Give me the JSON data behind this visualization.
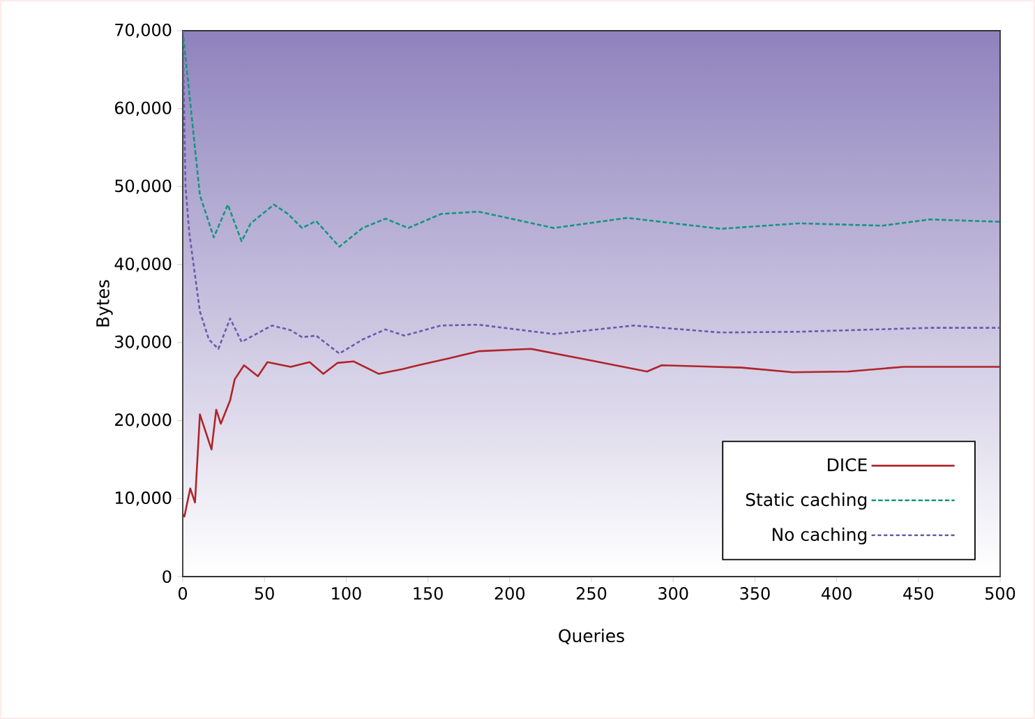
{
  "chart_data": {
    "type": "line",
    "xlabel": "Queries",
    "ylabel": "Bytes",
    "xlim": [
      0,
      500
    ],
    "ylim": [
      0,
      70000
    ],
    "xticks": [
      0,
      50,
      100,
      150,
      200,
      250,
      300,
      350,
      400,
      450,
      500
    ],
    "yticks": [
      0,
      {
        "value": 10000,
        "label": "10,000"
      },
      {
        "value": 20000,
        "label": "20,000"
      },
      {
        "value": 30000,
        "label": "30,000"
      },
      {
        "value": 40000,
        "label": "40,000"
      },
      {
        "value": 50000,
        "label": "50,000"
      },
      {
        "value": 60000,
        "label": "60,000"
      },
      {
        "value": 70000,
        "label": "70,000"
      }
    ],
    "grid": false,
    "legend": "bottom right",
    "marker": "none",
    "series": [
      {
        "name": "DICE",
        "color": "#b0242a",
        "line_style": "solid",
        "x": [
          0,
          1,
          4.6,
          7.5,
          10.5,
          17.6,
          20.5,
          23.3,
          29,
          31.8,
          37.5,
          46,
          51.8,
          66,
          77.6,
          86,
          94.6,
          104.5,
          120,
          134.5,
          144,
          163,
          181,
          213,
          250,
          284,
          293,
          342,
          373,
          407,
          441,
          500
        ],
        "values": [
          8000,
          7700,
          11300,
          9500,
          20800,
          16300,
          21400,
          19600,
          22600,
          25300,
          27100,
          25700,
          27500,
          26900,
          27500,
          26000,
          27400,
          27600,
          26000,
          26600,
          27100,
          28000,
          28900,
          29200,
          27700,
          26300,
          27100,
          26800,
          26200,
          26300,
          26900,
          26900
        ]
      },
      {
        "name": "Static caching",
        "color": "#14967f",
        "line_style": "dashed",
        "x": [
          0,
          2,
          10.5,
          19,
          27.6,
          36,
          41.6,
          55.8,
          64.4,
          73,
          81.6,
          95.8,
          110,
          124,
          138,
          158,
          181,
          227,
          272,
          329,
          377,
          428,
          457,
          500
        ],
        "values": [
          70000,
          66000,
          48900,
          43500,
          47700,
          43000,
          45300,
          47700,
          46500,
          44700,
          45600,
          42300,
          44700,
          45900,
          44700,
          46500,
          46800,
          44700,
          46000,
          44600,
          45300,
          45000,
          45800,
          45500
        ]
      },
      {
        "name": "No caching",
        "color": "#6a5aaa",
        "line_style": "dashed",
        "x": [
          0,
          1.7,
          4,
          10.5,
          16,
          21.8,
          29,
          36,
          54.6,
          66,
          73,
          81.6,
          95.8,
          110,
          124,
          135.6,
          158,
          181,
          227,
          276,
          329,
          377,
          457,
          500
        ],
        "values": [
          70000,
          50100,
          44100,
          34000,
          30400,
          29200,
          33100,
          30100,
          32200,
          31600,
          30700,
          30900,
          28600,
          30400,
          31700,
          30900,
          32200,
          32300,
          31100,
          32200,
          31300,
          31400,
          31900,
          31900
        ]
      }
    ]
  }
}
